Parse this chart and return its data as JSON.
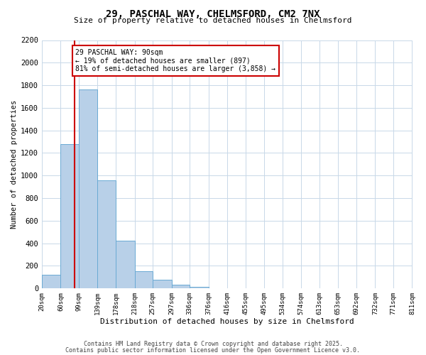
{
  "title": "29, PASCHAL WAY, CHELMSFORD, CM2 7NX",
  "subtitle": "Size of property relative to detached houses in Chelmsford",
  "xlabel": "Distribution of detached houses by size in Chelmsford",
  "ylabel": "Number of detached properties",
  "bin_edges": [
    20,
    60,
    99,
    139,
    178,
    218,
    257,
    297,
    336,
    376,
    416,
    455,
    495,
    534,
    574,
    613,
    653,
    692,
    732,
    771,
    811
  ],
  "bin_counts": [
    120,
    1280,
    1760,
    960,
    420,
    150,
    75,
    35,
    15,
    0,
    0,
    0,
    0,
    0,
    0,
    0,
    0,
    0,
    0,
    0
  ],
  "bar_color": "#b8d0e8",
  "bar_edge_color": "#6aaad4",
  "vline_x": 90,
  "vline_color": "#cc0000",
  "annotation_title": "29 PASCHAL WAY: 90sqm",
  "annotation_line1": "← 19% of detached houses are smaller (897)",
  "annotation_line2": "81% of semi-detached houses are larger (3,858) →",
  "annotation_box_edge_color": "#cc0000",
  "ylim": [
    0,
    2200
  ],
  "xlim_left": 20,
  "xlim_right": 811,
  "background_color": "#ffffff",
  "grid_color": "#c8d8e8",
  "tick_labels": [
    "20sqm",
    "60sqm",
    "99sqm",
    "139sqm",
    "178sqm",
    "218sqm",
    "257sqm",
    "297sqm",
    "336sqm",
    "376sqm",
    "416sqm",
    "455sqm",
    "495sqm",
    "534sqm",
    "574sqm",
    "613sqm",
    "653sqm",
    "692sqm",
    "732sqm",
    "771sqm",
    "811sqm"
  ],
  "yticks": [
    0,
    200,
    400,
    600,
    800,
    1000,
    1200,
    1400,
    1600,
    1800,
    2000,
    2200
  ],
  "footer1": "Contains HM Land Registry data © Crown copyright and database right 2025.",
  "footer2": "Contains public sector information licensed under the Open Government Licence v3.0."
}
